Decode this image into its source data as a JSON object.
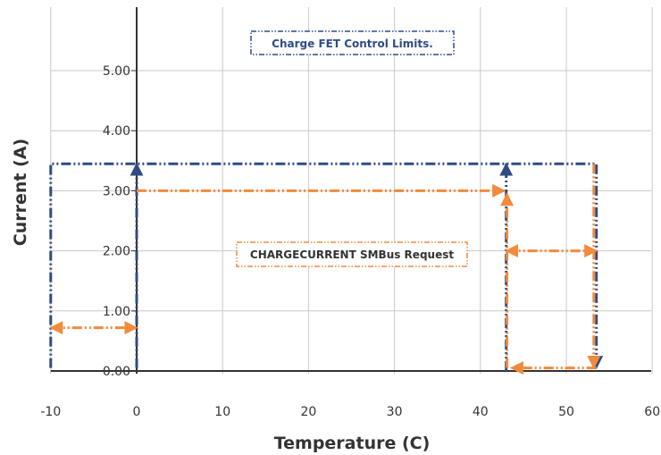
{
  "chart_data": {
    "type": "line",
    "xlabel": "Temperature (C)",
    "ylabel": "Current (A)",
    "xlim": [
      -10,
      60
    ],
    "ylim": [
      0,
      5.5
    ],
    "x_ticks": [
      -10,
      0,
      10,
      20,
      30,
      40,
      50,
      60
    ],
    "x_tick_labels": [
      "-10",
      "0",
      "10",
      "20",
      "30",
      "40",
      "50",
      "60"
    ],
    "y_ticks": [
      0,
      1,
      2,
      3,
      4,
      5
    ],
    "y_tick_labels": [
      "0.00",
      "1.00",
      "2.00",
      "3.00",
      "4.00",
      "5.00"
    ],
    "grid": true,
    "colors": {
      "fet": "#2f4c83",
      "request": "#f28a3c",
      "grid": "#c8c8c8",
      "axis": "#333333"
    },
    "annotations": [
      {
        "text": "Charge FET Control Limits.",
        "color": "#2f4c83"
      },
      {
        "text": "CHARGECURRENT SMBus Request",
        "color": "#f28a3c"
      }
    ],
    "series": [
      {
        "points": [
          [
            -10,
            0.05
          ],
          [
            -10,
            3.45
          ],
          [
            53.5,
            3.45
          ],
          [
            53.5,
            0.05
          ]
        ],
        "color": "#2f4c83",
        "arrow": "end"
      },
      {
        "points": [
          [
            0,
            0.05
          ],
          [
            0,
            3.45
          ]
        ],
        "color": "#2f4c83",
        "arrow": "end"
      },
      {
        "points": [
          [
            43,
            0
          ],
          [
            43,
            3.45
          ]
        ],
        "color": "#2f4c83",
        "arrow": "end"
      },
      {
        "points": [
          [
            0,
            3.0
          ],
          [
            42.8,
            3.0
          ]
        ],
        "color": "#f28a3c",
        "arrow": "end"
      },
      {
        "points": [
          [
            43.1,
            0.05
          ],
          [
            43.1,
            2.95
          ]
        ],
        "color": "#f28a3c",
        "arrow": "end"
      },
      {
        "points": [
          [
            53.5,
            0.05
          ],
          [
            43.6,
            0.05
          ]
        ],
        "color": "#f28a3c",
        "arrow": "end"
      },
      {
        "points": [
          [
            53.2,
            3.45
          ],
          [
            53.2,
            0.05
          ]
        ],
        "color": "#f28a3c",
        "arrow": "end"
      },
      {
        "points": [
          [
            -10,
            0.72
          ],
          [
            0,
            0.72
          ]
        ],
        "color": "#f28a3c",
        "arrow": "both"
      },
      {
        "points": [
          [
            43,
            2.0
          ],
          [
            53.5,
            2.0
          ]
        ],
        "color": "#f28a3c",
        "arrow": "both"
      }
    ]
  }
}
